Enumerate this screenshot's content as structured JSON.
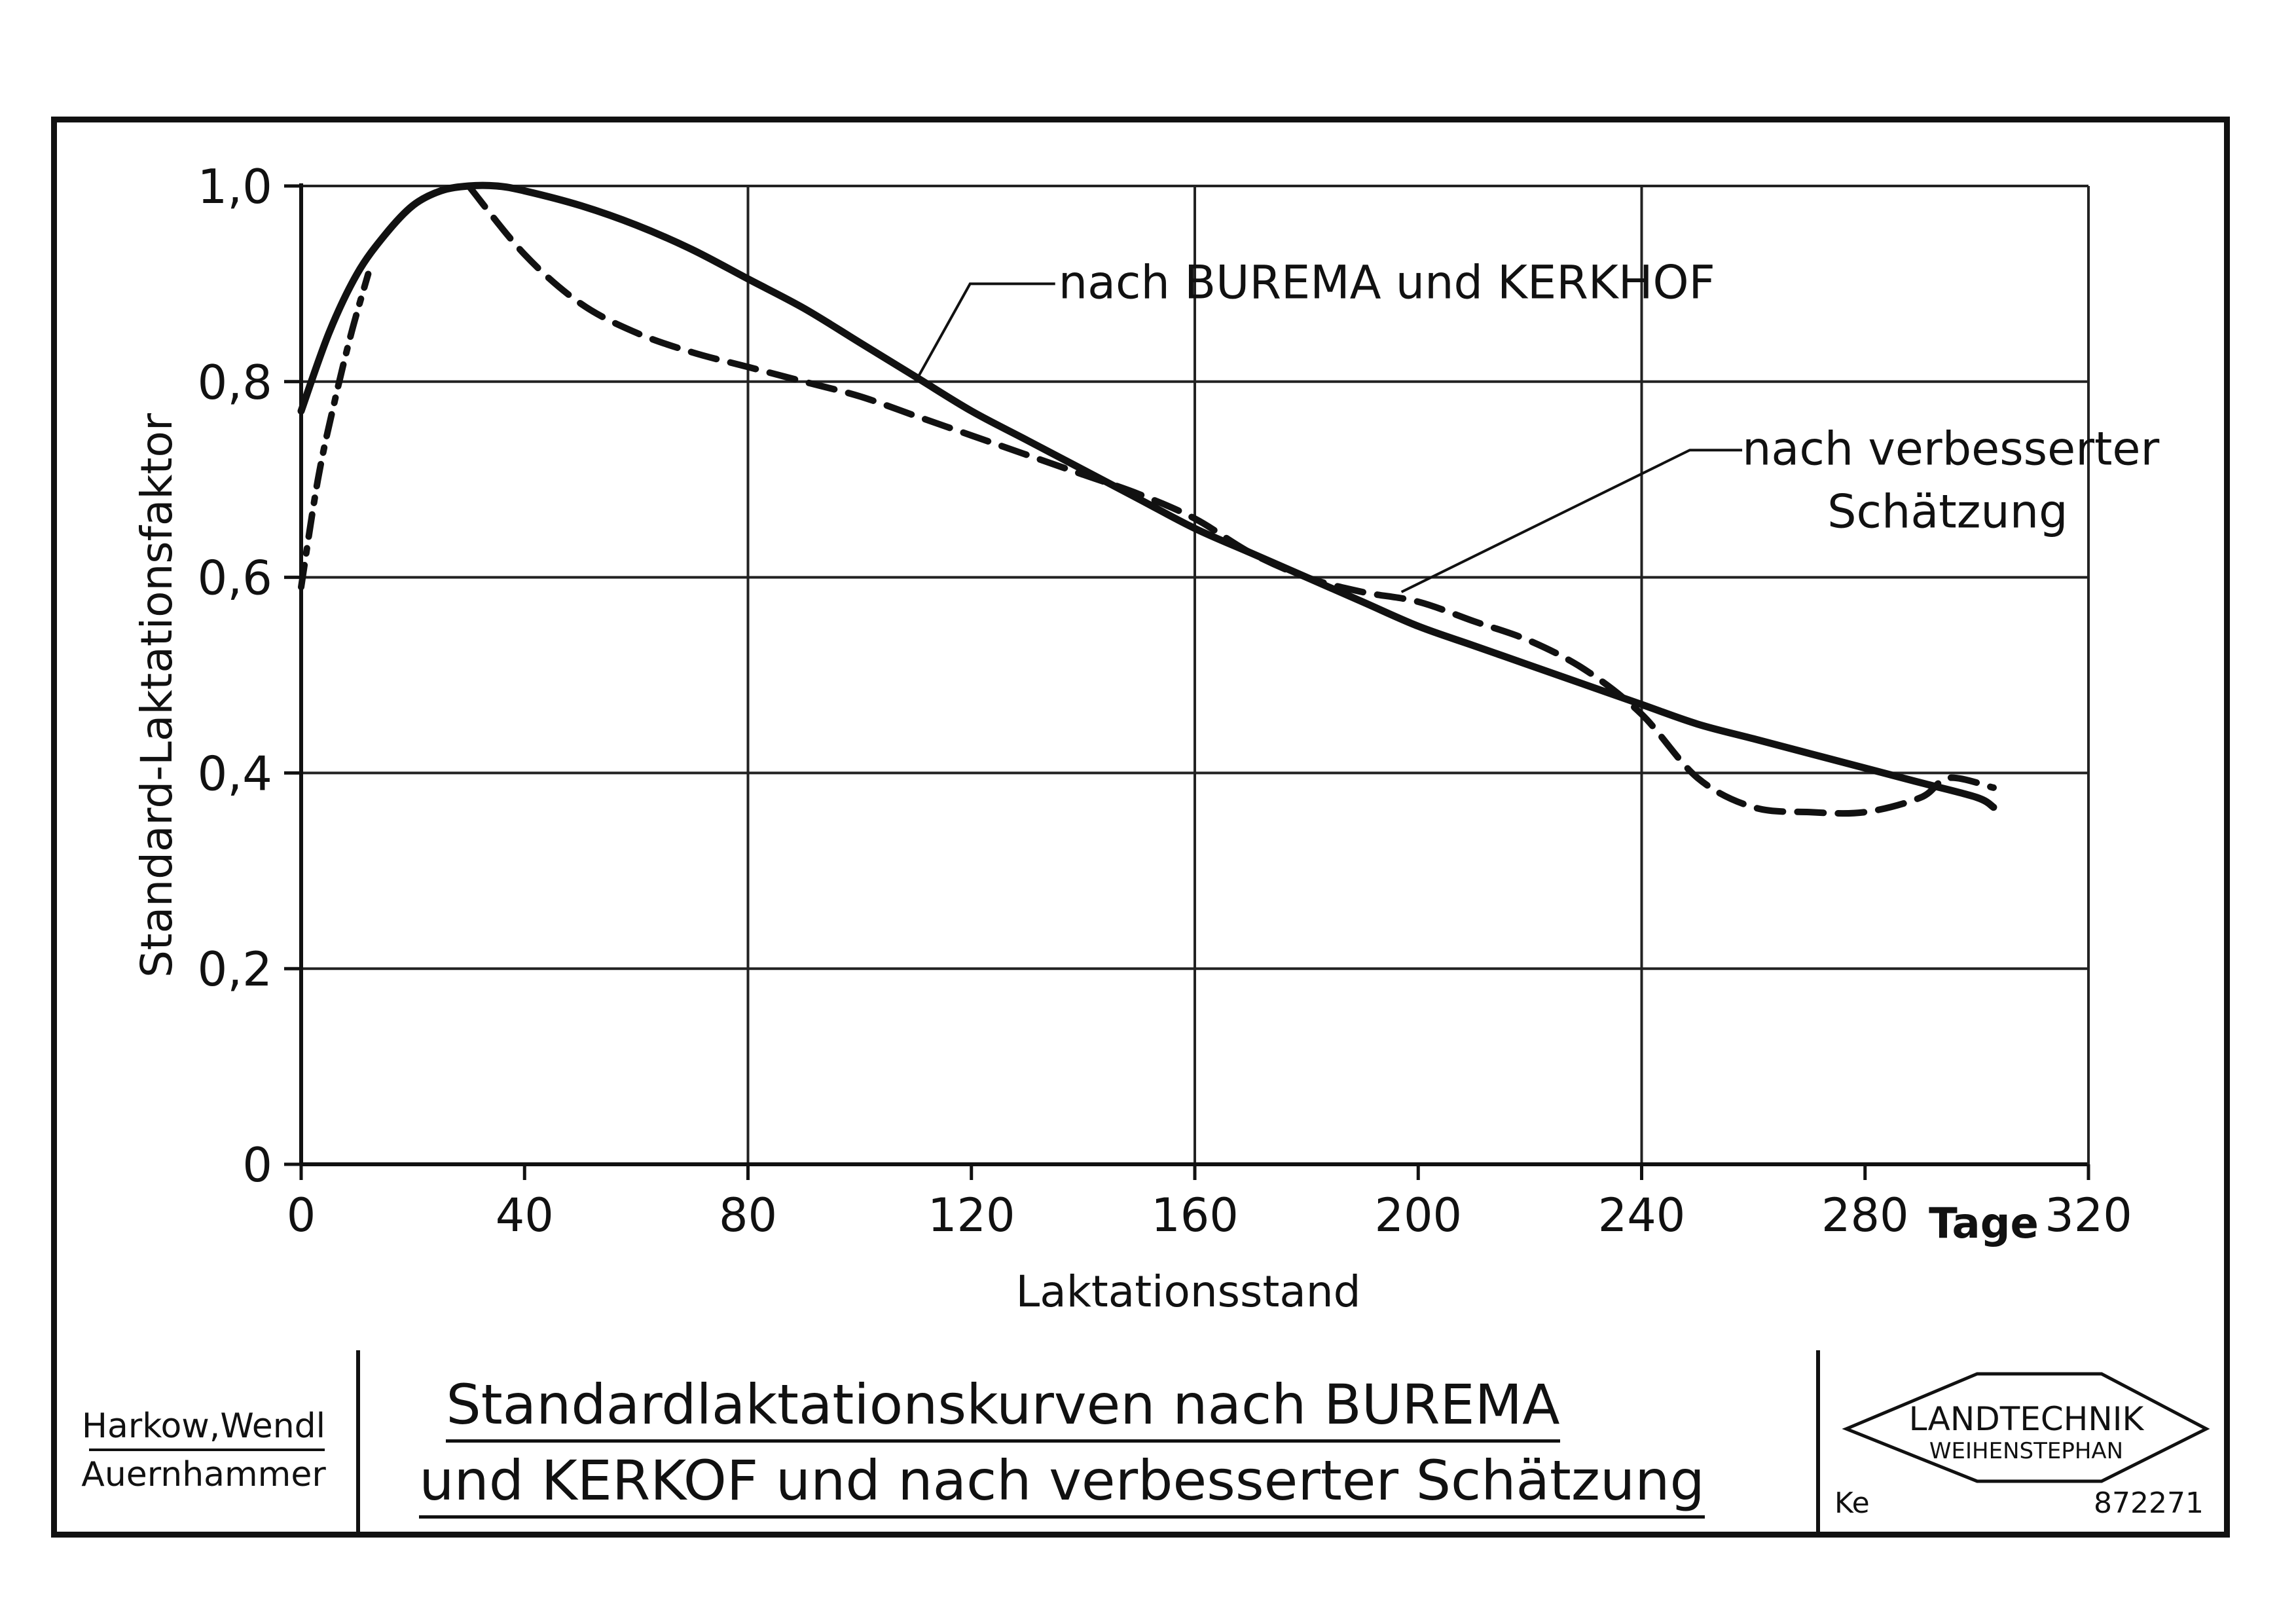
{
  "chart_data": {
    "type": "line",
    "xlabel": "Laktationsstand",
    "ylabel": "Standard-Laktationsfaktor",
    "x_unit_label": "Tage",
    "xlim": [
      0,
      320
    ],
    "ylim": [
      0,
      1.0
    ],
    "x_ticks": [
      0,
      40,
      80,
      120,
      160,
      200,
      240,
      280,
      320
    ],
    "x_tick_labels": [
      "0",
      "40",
      "80",
      "120",
      "160",
      "200",
      "240",
      "280",
      "320"
    ],
    "y_ticks": [
      0,
      0.2,
      0.4,
      0.6,
      0.8,
      1.0
    ],
    "y_tick_labels": [
      "0",
      "0,2",
      "0,4",
      "0,6",
      "0,8",
      "1,0"
    ],
    "grid": true,
    "series": [
      {
        "name": "nach BUREMA und KERKHOF",
        "style": "solid",
        "x": [
          0,
          5,
          10,
          15,
          20,
          25,
          30,
          35,
          40,
          50,
          60,
          70,
          80,
          90,
          100,
          110,
          120,
          130,
          140,
          150,
          160,
          170,
          180,
          190,
          200,
          210,
          220,
          230,
          240,
          250,
          260,
          270,
          280,
          290,
          300,
          303
        ],
        "y": [
          0.77,
          0.85,
          0.91,
          0.95,
          0.98,
          0.995,
          1.0,
          1.0,
          0.995,
          0.98,
          0.96,
          0.935,
          0.905,
          0.875,
          0.84,
          0.805,
          0.77,
          0.74,
          0.71,
          0.68,
          0.65,
          0.625,
          0.6,
          0.575,
          0.55,
          0.53,
          0.51,
          0.49,
          0.47,
          0.45,
          0.435,
          0.42,
          0.405,
          0.39,
          0.375,
          0.365
        ]
      },
      {
        "name": "nach verbesserter Schätzung",
        "style": "dashed",
        "x": [
          30,
          40,
          50,
          60,
          70,
          80,
          90,
          100,
          110,
          120,
          130,
          140,
          150,
          160,
          170,
          180,
          190,
          200,
          210,
          220,
          230,
          240,
          250,
          260,
          270,
          280,
          290,
          295,
          303
        ],
        "y": [
          1.0,
          0.93,
          0.88,
          0.85,
          0.83,
          0.815,
          0.8,
          0.785,
          0.765,
          0.745,
          0.725,
          0.705,
          0.685,
          0.66,
          0.625,
          0.6,
          0.585,
          0.575,
          0.555,
          0.535,
          0.505,
          0.46,
          0.395,
          0.365,
          0.36,
          0.36,
          0.375,
          0.395,
          0.385
        ]
      },
      {
        "style": "dash-dot",
        "x": [
          0,
          3,
          6,
          9,
          12
        ],
        "y": [
          0.59,
          0.7,
          0.78,
          0.85,
          0.91
        ]
      }
    ],
    "annotations": [
      {
        "text": "nach BUREMA und KERKHOF",
        "x": 135,
        "y": 0.9
      },
      {
        "text_lines": [
          "nach verbesserter",
          "Schätzung"
        ],
        "x": 258,
        "y": 0.73
      }
    ]
  },
  "title_block": {
    "authors_line1": "Harkow,Wendl",
    "authors_line2": "Auernhammer",
    "title_line1": "Standardlaktationskurven nach BUREMA",
    "title_line2": "und KERKOF und nach verbesserter Schätzung",
    "logo_line1": "LANDTECHNIK",
    "logo_line2": "WEIHENSTEPHAN",
    "code_left": "Ke",
    "code_right": "872271"
  }
}
